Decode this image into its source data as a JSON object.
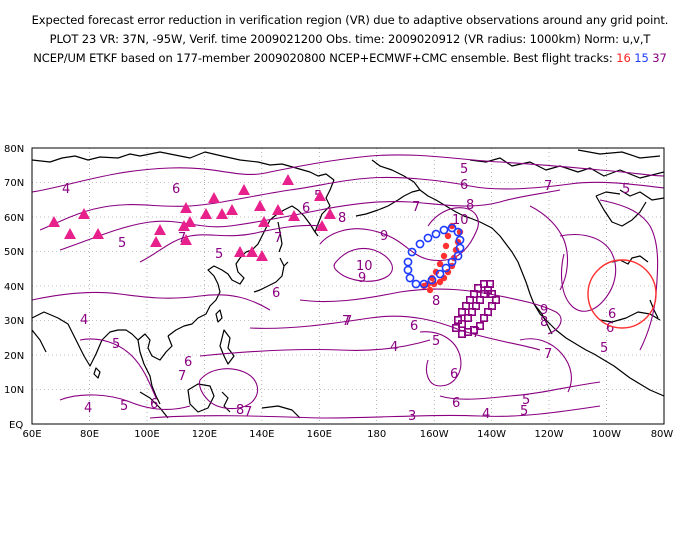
{
  "header": {
    "line1": "Expected forecast error reduction in verification region (VR) due to adaptive observations around any grid point.",
    "line2": "PLOT 23 VR: 37N, -95W, Verif. time 2009021200 Obs. time: 2009020912 (VR radius: 1000km) Norm: u,v,T",
    "line3_prefix": "NCEP/UM ETKF based on 177-member 2009020800 NCEP+ECMWF+CMC ensemble. Best flight tracks:",
    "track_a": "16",
    "track_b": "15",
    "track_c": "37"
  },
  "map": {
    "lat_labels": [
      "80N",
      "70N",
      "60N",
      "50N",
      "40N",
      "30N",
      "20N",
      "10N",
      "EQ"
    ],
    "lon_labels": [
      "60E",
      "80E",
      "100E",
      "120E",
      "140E",
      "160E",
      "180",
      "160W",
      "140W",
      "120W",
      "100W",
      "80W"
    ],
    "contour_labels": [
      "4",
      "5",
      "6",
      "7",
      "5",
      "6",
      "7",
      "5",
      "6",
      "7",
      "8",
      "9",
      "10",
      "5",
      "6",
      "7",
      "8",
      "9",
      "10",
      "7",
      "8",
      "9",
      "8",
      "7",
      "6",
      "5",
      "4",
      "6",
      "7",
      "5",
      "6",
      "7",
      "5",
      "4",
      "5",
      "6",
      "3",
      "4",
      "5",
      "6",
      "8",
      "7",
      "5",
      "6",
      "7",
      "4",
      "5",
      "6",
      "6",
      "7",
      "8",
      "9",
      "5",
      "4",
      "3",
      "7",
      "6",
      "5",
      "6",
      "4"
    ],
    "colors": {
      "contour": "#8a0080",
      "coast": "#000000",
      "grid": "#888888",
      "track_16": "#ff3030",
      "track_15": "#1e3cff",
      "track_37": "#8a0080",
      "triangle": "#e8208c",
      "vr_circle": "#ff3030"
    },
    "verification_region": {
      "lat": 37,
      "lon": -95,
      "radius_km": 1000
    }
  }
}
